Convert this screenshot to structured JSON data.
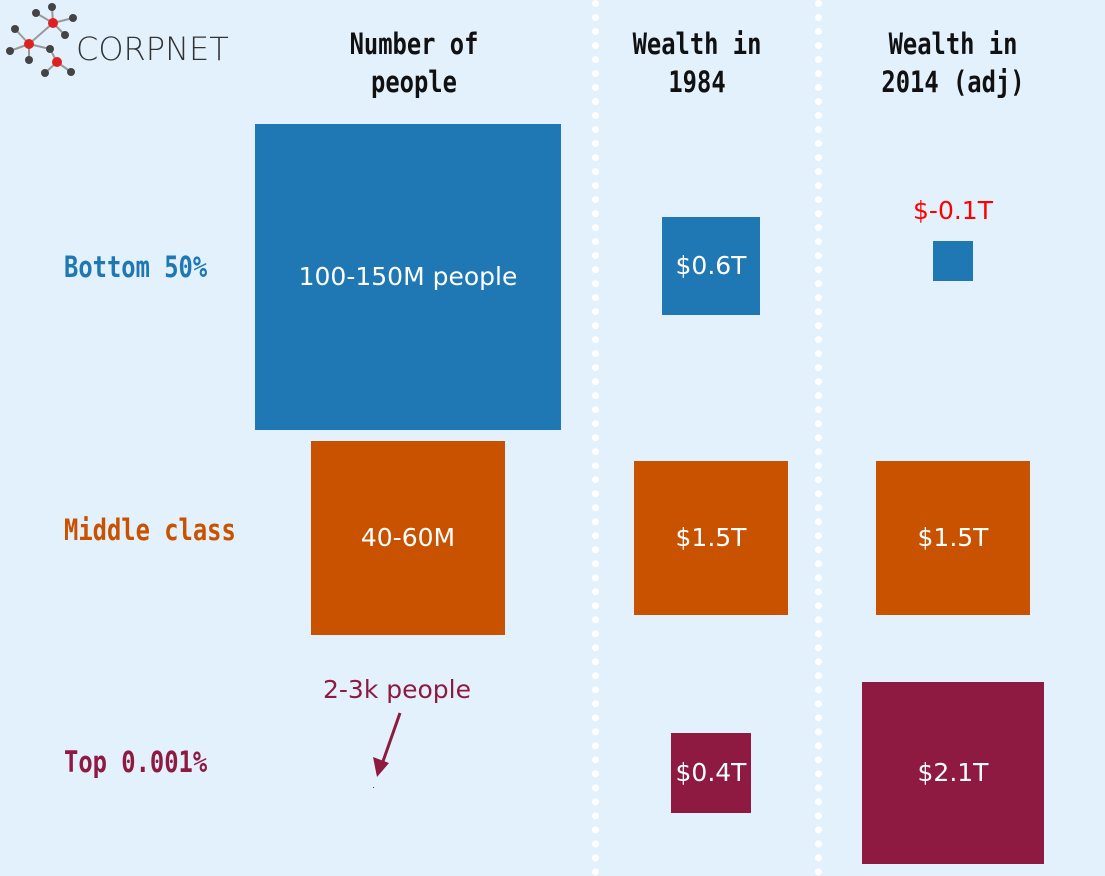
{
  "logo": {
    "text": "CORPNET"
  },
  "columns": [
    "Number of people",
    "Wealth in 1984",
    "Wealth in 2014 (adj)"
  ],
  "column_lines": [
    [
      "Number of",
      "people"
    ],
    [
      "Wealth in",
      "1984"
    ],
    [
      "Wealth in",
      "2014 (adj)"
    ]
  ],
  "colors": {
    "bottom": "#1f77b4",
    "middle": "#c85200",
    "top": "#8e1a42",
    "negative_label": "#ff0000",
    "background": "#e3f1fc"
  },
  "chart_data": {
    "type": "proportional-area squares",
    "rows": [
      "Bottom 50%",
      "Middle class",
      "Top 0.001%"
    ],
    "people": {
      "values_millions": [
        125,
        50,
        0.0025
      ],
      "labels": [
        "100-150M people",
        "40-60M",
        "2-3k people"
      ]
    },
    "wealth_1984": {
      "values_trillions": [
        0.6,
        1.5,
        0.4
      ],
      "labels": [
        "$0.6T",
        "$1.5T",
        "$0.4T"
      ]
    },
    "wealth_2014": {
      "values_trillions": [
        -0.1,
        1.5,
        2.1
      ],
      "labels": [
        "$-0.1T",
        "$1.5T",
        "$2.1T"
      ]
    }
  }
}
